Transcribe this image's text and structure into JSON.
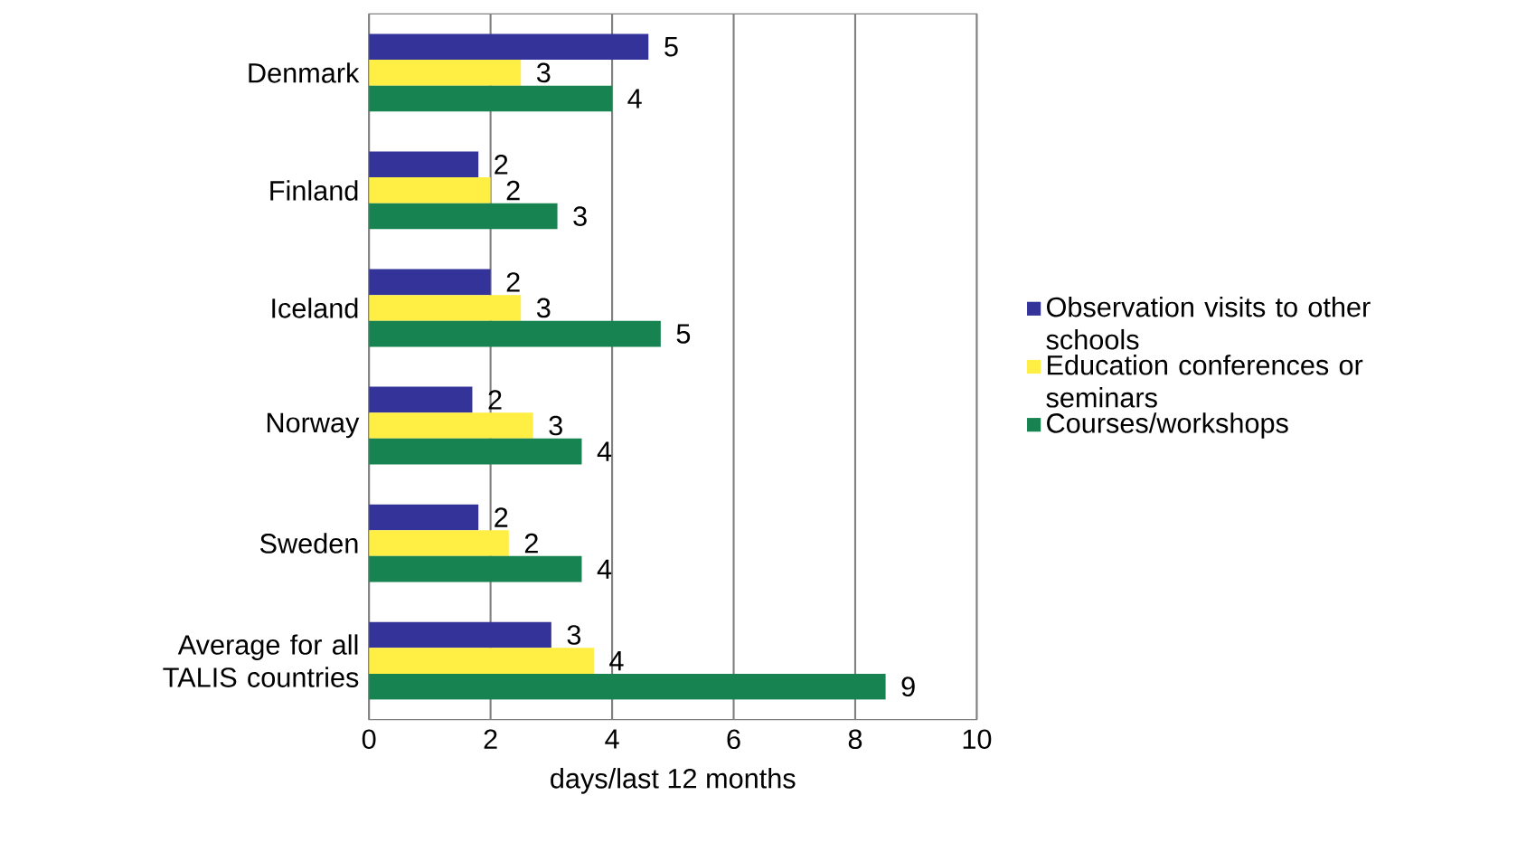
{
  "chart_data": {
    "type": "bar",
    "orientation": "horizontal",
    "xlabel": "days/last 12 months",
    "categories": [
      "Denmark",
      "Finland",
      "Iceland",
      "Norway",
      "Sweden",
      "Average for all TALIS countries"
    ],
    "series": [
      {
        "name": "Observation visits to other schools",
        "color": "#333399",
        "values": [
          4.6,
          1.8,
          2.0,
          1.7,
          1.8,
          3.0
        ],
        "value_labels": [
          "5",
          "2",
          "2",
          "2",
          "2",
          "3"
        ]
      },
      {
        "name": "Education conferences or seminars",
        "color": "#ffee44",
        "values": [
          2.5,
          2.0,
          2.5,
          2.7,
          2.3,
          3.7
        ],
        "value_labels": [
          "3",
          "2",
          "3",
          "3",
          "2",
          "4"
        ]
      },
      {
        "name": "Courses/workshops",
        "color": "#178350",
        "values": [
          4.0,
          3.1,
          4.8,
          3.5,
          3.5,
          8.5
        ],
        "value_labels": [
          "4",
          "3",
          "5",
          "4",
          "4",
          "9"
        ]
      }
    ],
    "xlim": [
      0,
      10
    ],
    "xticks": [
      0,
      2,
      4,
      6,
      8,
      10
    ],
    "grid": "x",
    "legend": "right"
  }
}
